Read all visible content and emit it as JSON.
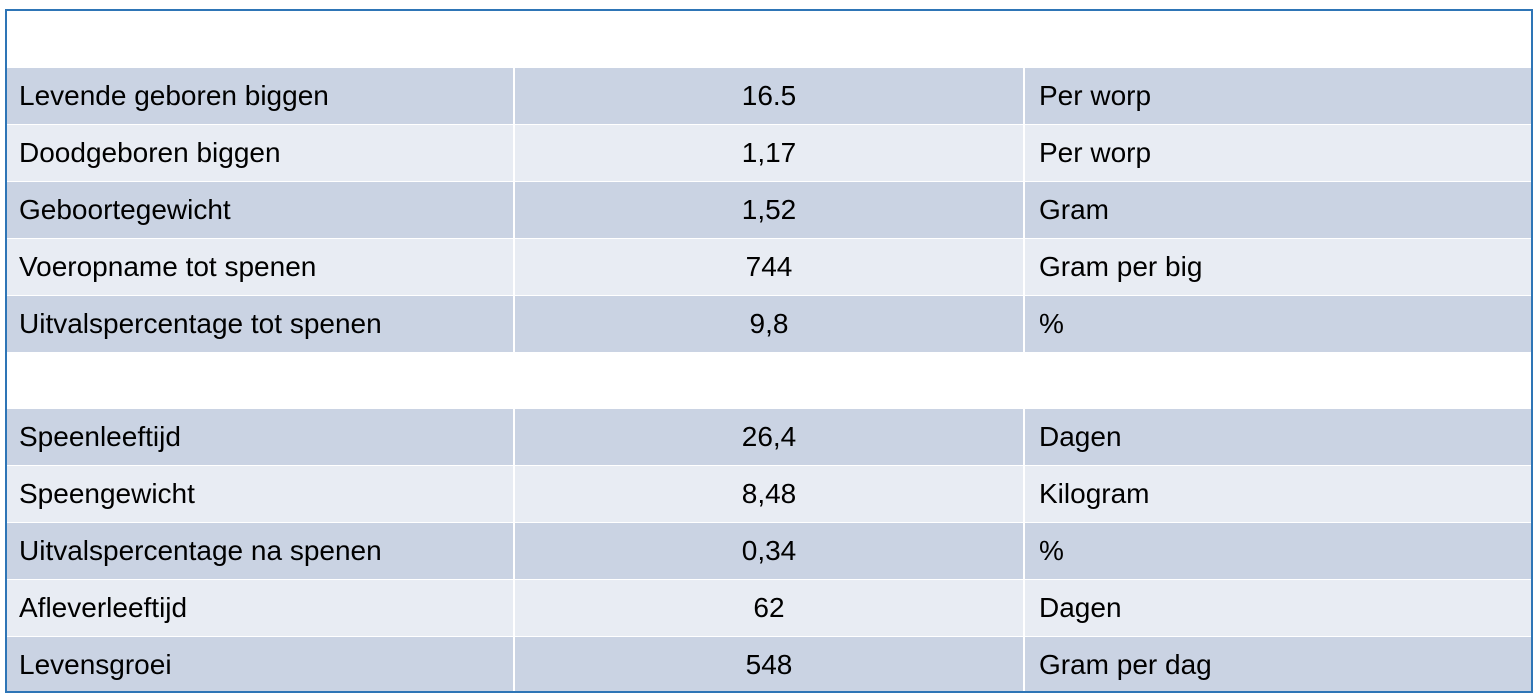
{
  "table": {
    "section_one": [
      {
        "label": "Levende geboren biggen",
        "value": "16.5",
        "unit": "Per worp"
      },
      {
        "label": "Doodgeboren biggen",
        "value": "1,17",
        "unit": "Per worp"
      },
      {
        "label": "Geboortegewicht",
        "value": "1,52",
        "unit": "Gram"
      },
      {
        "label": "Voeropname tot spenen",
        "value": "744",
        "unit": "Gram per big"
      },
      {
        "label": "Uitvalspercentage tot spenen",
        "value": "9,8",
        "unit": "%"
      }
    ],
    "section_two": [
      {
        "label": "Speenleeftijd",
        "value": "26,4",
        "unit": "Dagen"
      },
      {
        "label": "Speengewicht",
        "value": "8,48",
        "unit": "Kilogram"
      },
      {
        "label": "Uitvalspercentage na spenen",
        "value": "0,34",
        "unit": "%"
      },
      {
        "label": "Afleverleeftijd",
        "value": "62",
        "unit": "Dagen"
      },
      {
        "label": "Levensgroei",
        "value": "548",
        "unit": "Gram per dag"
      }
    ]
  },
  "colors": {
    "border": "#2E75B6",
    "row_dark": "#CAD3E3",
    "row_light": "#E8ECF3"
  }
}
